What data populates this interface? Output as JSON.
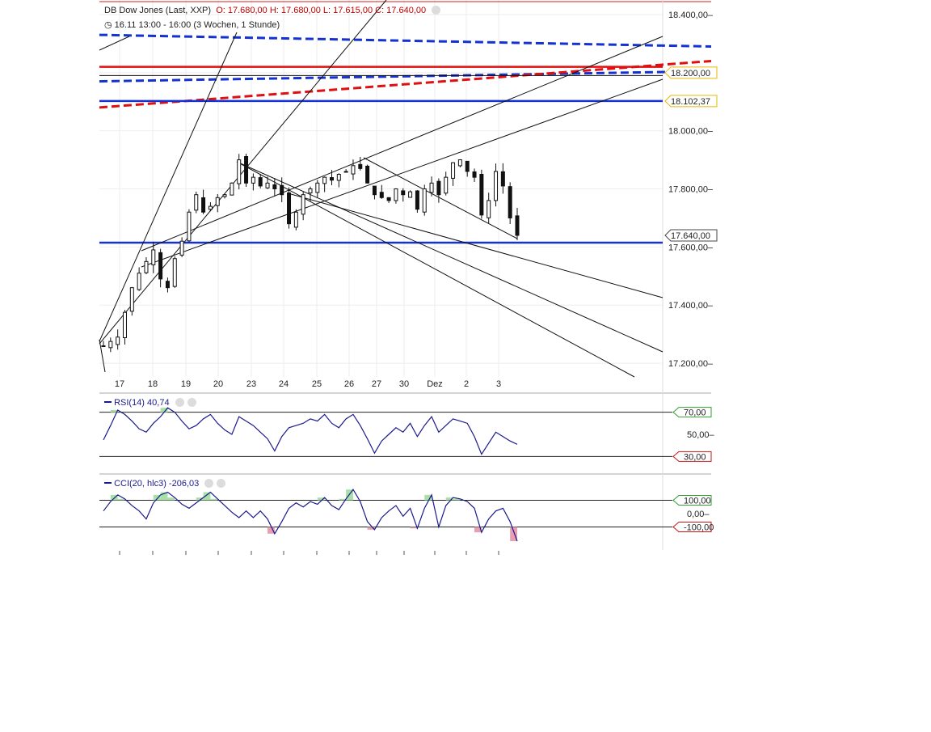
{
  "header": {
    "instrument": "DB Dow Jones (Last, XXP)",
    "ohlc": "O: 17.680,00  H: 17.680,00  L: 17.615,00  C: 17.640,00",
    "period": "16.11 13:00 - 16:00 (3 Wochen, 1 Stunde)"
  },
  "colors": {
    "blue_line": "#1432d2",
    "red_line": "#e01010",
    "indicator": "#1a1a8c",
    "overbought_fill": "#a8e0a8",
    "oversold_fill": "#e8a0b0",
    "badge_yellow": "#e6b800",
    "badge_green": "#2e9e2e",
    "badge_red": "#c81414",
    "badge_price": "#444444"
  },
  "chart_data": [
    {
      "type": "candlestick",
      "title": "DB Dow Jones (Last, XXP)",
      "ylim": [
        17100,
        18450
      ],
      "y_ticks": [
        "18.400,00",
        "18.200,00",
        "18.000,00",
        "17.800,00",
        "17.600,00",
        "17.400,00",
        "17.200,00"
      ],
      "y_tick_values": [
        18400,
        18200,
        18000,
        17800,
        17600,
        17400,
        17200
      ],
      "x_ticks": [
        "17",
        "18",
        "19",
        "20",
        "23",
        "24",
        "25",
        "26",
        "27",
        "30",
        "Dez",
        "2",
        "3"
      ],
      "price_path": [
        [
          0,
          17260
        ],
        [
          2,
          17290
        ],
        [
          4,
          17460
        ],
        [
          5,
          17510
        ],
        [
          6,
          17550
        ],
        [
          7,
          17590
        ],
        [
          8,
          17490
        ],
        [
          9,
          17460
        ],
        [
          10,
          17560
        ],
        [
          11,
          17620
        ],
        [
          12,
          17720
        ],
        [
          13,
          17780
        ],
        [
          14,
          17720
        ],
        [
          15,
          17740
        ],
        [
          16,
          17770
        ],
        [
          17,
          17780
        ],
        [
          18,
          17820
        ],
        [
          19,
          17900
        ],
        [
          20,
          17820
        ],
        [
          21,
          17840
        ],
        [
          22,
          17810
        ],
        [
          23,
          17820
        ],
        [
          24,
          17800
        ],
        [
          25,
          17780
        ],
        [
          26,
          17680
        ],
        [
          27,
          17720
        ],
        [
          28,
          17780
        ],
        [
          29,
          17800
        ],
        [
          30,
          17820
        ],
        [
          31,
          17840
        ],
        [
          32,
          17830
        ],
        [
          33,
          17850
        ],
        [
          34,
          17860
        ],
        [
          35,
          17880
        ],
        [
          36,
          17870
        ],
        [
          37,
          17820
        ],
        [
          38,
          17780
        ],
        [
          39,
          17770
        ],
        [
          40,
          17760
        ],
        [
          41,
          17800
        ],
        [
          42,
          17780
        ],
        [
          43,
          17790
        ],
        [
          44,
          17730
        ],
        [
          45,
          17800
        ],
        [
          46,
          17820
        ],
        [
          47,
          17780
        ],
        [
          48,
          17840
        ],
        [
          49,
          17890
        ],
        [
          50,
          17900
        ],
        [
          51,
          17860
        ],
        [
          52,
          17840
        ],
        [
          53,
          17710
        ],
        [
          54,
          17760
        ],
        [
          55,
          17860
        ],
        [
          56,
          17810
        ],
        [
          57,
          17700
        ],
        [
          58,
          17640
        ]
      ],
      "candle_count": 59,
      "horizontal_lines": [
        {
          "price": 18220,
          "color": "red_line",
          "style": "solid"
        },
        {
          "price": 18190,
          "color": "#111111",
          "style": "solid"
        },
        {
          "price": 18102.37,
          "color": "blue_line",
          "style": "solid"
        },
        {
          "price": 17615,
          "color": "blue_line",
          "style": "solid"
        }
      ],
      "trend_lines": [
        {
          "from": [
            0,
            18330
          ],
          "to": [
            80,
            18290
          ],
          "color": "blue_line",
          "style": "dashed"
        },
        {
          "from": [
            0,
            18170
          ],
          "to": [
            80,
            18205
          ],
          "color": "blue_line",
          "style": "dashed"
        },
        {
          "from": [
            0,
            18080
          ],
          "to": [
            80,
            18240
          ],
          "color": "red_line",
          "style": "dashed"
        }
      ],
      "price_badges": [
        {
          "label": "18.200,00",
          "price": 18200,
          "color": "badge_yellow"
        },
        {
          "label": "18.102,37",
          "price": 18102.37,
          "color": "badge_yellow"
        },
        {
          "label": "17.640,00",
          "price": 17640,
          "color": "badge_price"
        }
      ]
    },
    {
      "type": "line",
      "title": "RSI(14)",
      "current_value": "40,74",
      "ylim": [
        20,
        80
      ],
      "levels": [
        {
          "label": "70,00",
          "value": 70,
          "color": "badge_green"
        },
        {
          "label": "50,00",
          "value": 50,
          "color": "none"
        },
        {
          "label": "30,00",
          "value": 30,
          "color": "badge_red"
        }
      ],
      "values": [
        45,
        58,
        72,
        68,
        62,
        55,
        52,
        60,
        66,
        74,
        70,
        62,
        55,
        58,
        64,
        68,
        60,
        54,
        50,
        66,
        62,
        58,
        52,
        46,
        35,
        48,
        56,
        58,
        60,
        64,
        62,
        68,
        60,
        56,
        64,
        68,
        58,
        46,
        33,
        44,
        50,
        56,
        52,
        60,
        48,
        58,
        66,
        52,
        58,
        64,
        62,
        60,
        48,
        32,
        42,
        52,
        48,
        44,
        41
      ]
    },
    {
      "type": "line",
      "title": "CCI(20, hlc3)",
      "current_value": "-206,03",
      "ylim": [
        -260,
        260
      ],
      "levels": [
        {
          "label": "100,00",
          "value": 100,
          "color": "badge_green"
        },
        {
          "label": "0,00",
          "value": 0,
          "color": "none"
        },
        {
          "label": "-100,00",
          "value": -100,
          "color": "badge_red"
        }
      ],
      "values": [
        20,
        90,
        140,
        110,
        60,
        20,
        -40,
        80,
        140,
        160,
        120,
        70,
        40,
        80,
        120,
        160,
        110,
        60,
        10,
        -30,
        20,
        -30,
        20,
        -40,
        -150,
        -60,
        40,
        80,
        50,
        90,
        70,
        120,
        60,
        30,
        110,
        180,
        90,
        -60,
        -120,
        -30,
        20,
        60,
        -20,
        40,
        -110,
        40,
        140,
        -100,
        60,
        120,
        110,
        90,
        40,
        -140,
        -40,
        20,
        40,
        -60,
        -206
      ]
    }
  ]
}
